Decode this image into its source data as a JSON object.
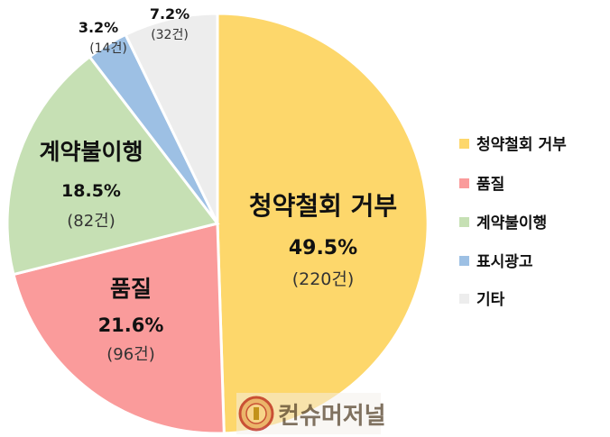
{
  "chart_data": {
    "type": "pie",
    "title": "",
    "legend_position": "right",
    "slices": [
      {
        "name": "청약철회 거부",
        "percent_label": "49.5%",
        "count_label": "(220건)",
        "percent": 49.5,
        "count": 220,
        "color": "#FDD76B"
      },
      {
        "name": "품질",
        "percent_label": "21.6%",
        "count_label": "(96건)",
        "percent": 21.6,
        "count": 96,
        "color": "#FA9B9B"
      },
      {
        "name": "계약불이행",
        "percent_label": "18.5%",
        "count_label": "(82건)",
        "percent": 18.5,
        "count": 82,
        "color": "#C6E0B4"
      },
      {
        "name": "표시광고",
        "percent_label": "3.2%",
        "count_label": "(14건)",
        "percent": 3.2,
        "count": 14,
        "color": "#9DC0E4"
      },
      {
        "name": "기타",
        "percent_label": "7.2%",
        "count_label": "(32건)",
        "percent": 7.2,
        "count": 32,
        "color": "#EDEDED"
      }
    ]
  },
  "watermark": {
    "text": "컨슈머저널",
    "icon": "seal-logo-icon"
  }
}
